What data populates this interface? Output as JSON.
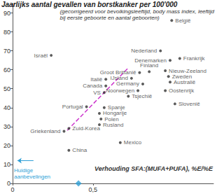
{
  "chart_data": {
    "type": "scatter",
    "title": "Jaarlijks aantal gevallen van borstkanker per 100'000",
    "subtitle": "(gecorrigeerd voor bevolkingsleeftijd, body mass index, leeftijd\nbij eerste geboorte en aantal geboorten)",
    "x_label": "Verhouding SFA:(MUFA+PUFA), %E/%E",
    "color": "#333333",
    "marker": "circle",
    "points": [
      {
        "label": "België",
        "x": 0.99,
        "y": 86
      },
      {
        "label": "Israël",
        "x": 0.24,
        "y": 67.6
      },
      {
        "label": "Nederland",
        "x": 0.92,
        "y": 70
      },
      {
        "label": "Denemarken",
        "x": 0.98,
        "y": 65
      },
      {
        "label": "Frankrijk",
        "x": 1.04,
        "y": 66
      },
      {
        "label": "Finland",
        "x": 0.85,
        "y": 59
      },
      {
        "label": "Groot Brittanië",
        "x": 0.79,
        "y": 58.5
      },
      {
        "label": "Nieuw-Zeeland",
        "x": 0.95,
        "y": 59.5
      },
      {
        "label": "Zweden",
        "x": 0.97,
        "y": 56.5
      },
      {
        "label": "IJsland",
        "x": 0.74,
        "y": 55.5
      },
      {
        "label": "Italië",
        "x": 0.58,
        "y": 55
      },
      {
        "label": "Australië",
        "x": 0.98,
        "y": 53.5
      },
      {
        "label": "Germany",
        "x": 0.81,
        "y": 52.5
      },
      {
        "label": "Canada",
        "x": 0.58,
        "y": 51.5
      },
      {
        "label": "VS",
        "x": 0.57,
        "y": 48
      },
      {
        "label": "Noorwegen",
        "x": 0.78,
        "y": 49
      },
      {
        "label": "Oostenrijk",
        "x": 0.95,
        "y": 49
      },
      {
        "label": "Tsjechië",
        "x": 0.72,
        "y": 46
      },
      {
        "label": "Slovenië",
        "x": 1.01,
        "y": 42
      },
      {
        "label": "Portugal",
        "x": 0.46,
        "y": 40.5
      },
      {
        "label": "Spanje",
        "x": 0.57,
        "y": 40
      },
      {
        "label": "Hongarije",
        "x": 0.54,
        "y": 37
      },
      {
        "label": "Polen",
        "x": 0.55,
        "y": 34
      },
      {
        "label": "Rusland",
        "x": 0.54,
        "y": 31
      },
      {
        "label": "Griekenland",
        "x": 0.32,
        "y": 27.5
      },
      {
        "label": "Zuid-Korea",
        "x": 0.35,
        "y": 29
      },
      {
        "label": "Mexico",
        "x": 0.67,
        "y": 21.5
      },
      {
        "label": "China",
        "x": 0.35,
        "y": 17.5
      }
    ],
    "trend_line": {
      "x": [
        0.34,
        0.72
      ],
      "y": [
        28,
        61
      ],
      "color": "#cc33cc",
      "line_style": "dashed"
    },
    "annotation": {
      "text": "Huidige\naanbevelingen",
      "x": 0.41,
      "arrow_x": [
        0.13,
        0.03
      ],
      "arrow_y": [
        12,
        12
      ],
      "color": "#2e9fd6",
      "marker": "diamond"
    },
    "xlim": [
      0,
      1.25
    ],
    "xticks": [
      0,
      {
        "value": 0.5,
        "label": "0,5"
      }
    ],
    "ylim": [
      0,
      95
    ],
    "yticks": [
      0,
      10,
      20,
      30,
      40,
      50,
      60,
      70,
      80,
      90
    ],
    "grid": false
  }
}
